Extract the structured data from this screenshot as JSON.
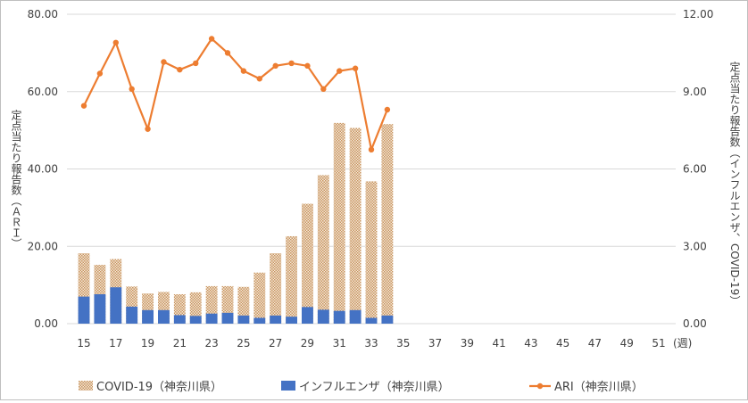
{
  "chart_data": {
    "type": "bar+line",
    "x_ticks": [
      "15",
      "17",
      "19",
      "21",
      "23",
      "25",
      "27",
      "29",
      "31",
      "33",
      "35",
      "37",
      "39",
      "41",
      "43",
      "45",
      "47",
      "49",
      "51"
    ],
    "x_unit": "(週)",
    "weeks": [
      15,
      16,
      17,
      18,
      19,
      20,
      21,
      22,
      23,
      24,
      25,
      26,
      27,
      28,
      29,
      30,
      31,
      32,
      33,
      34
    ],
    "series": [
      {
        "name": "COVID-19（神奈川県）",
        "type": "bar",
        "axis": "left",
        "color": "#d9b48f",
        "values": [
          18.2,
          15.2,
          16.7,
          9.6,
          7.8,
          8.2,
          7.6,
          8.1,
          9.7,
          9.7,
          9.5,
          13.2,
          18.2,
          22.6,
          31.0,
          38.4,
          51.9,
          50.6,
          36.8,
          51.6
        ]
      },
      {
        "name": "インフルエンザ（神奈川県）",
        "type": "bar",
        "axis": "left",
        "color": "#4472c4",
        "values": [
          7.0,
          7.6,
          9.4,
          4.4,
          3.5,
          3.5,
          2.2,
          2.0,
          2.6,
          2.8,
          2.1,
          1.5,
          2.1,
          1.8,
          4.3,
          3.6,
          3.3,
          3.5,
          1.5,
          2.1
        ]
      },
      {
        "name": "ARI（神奈川県）",
        "type": "line",
        "axis": "right",
        "color": "#ed7d31",
        "values": [
          8.45,
          9.7,
          10.9,
          9.1,
          7.55,
          10.15,
          9.85,
          10.1,
          11.05,
          10.5,
          9.8,
          9.5,
          10.0,
          10.1,
          10.0,
          9.1,
          9.8,
          9.9,
          6.75,
          8.3
        ]
      }
    ],
    "y_left": {
      "label": "定点当たり報告数（ＡＲＩ）",
      "range": [
        0,
        80
      ],
      "ticks": [
        "0.00",
        "20.00",
        "40.00",
        "60.00",
        "80.00"
      ]
    },
    "y_right": {
      "label": "定点当たり報告数（インフルエンザ、COVID-19）",
      "range": [
        0,
        12
      ],
      "ticks": [
        "0.00",
        "3.00",
        "6.00",
        "9.00",
        "12.00"
      ]
    },
    "legend_position": "bottom",
    "grid": true
  }
}
